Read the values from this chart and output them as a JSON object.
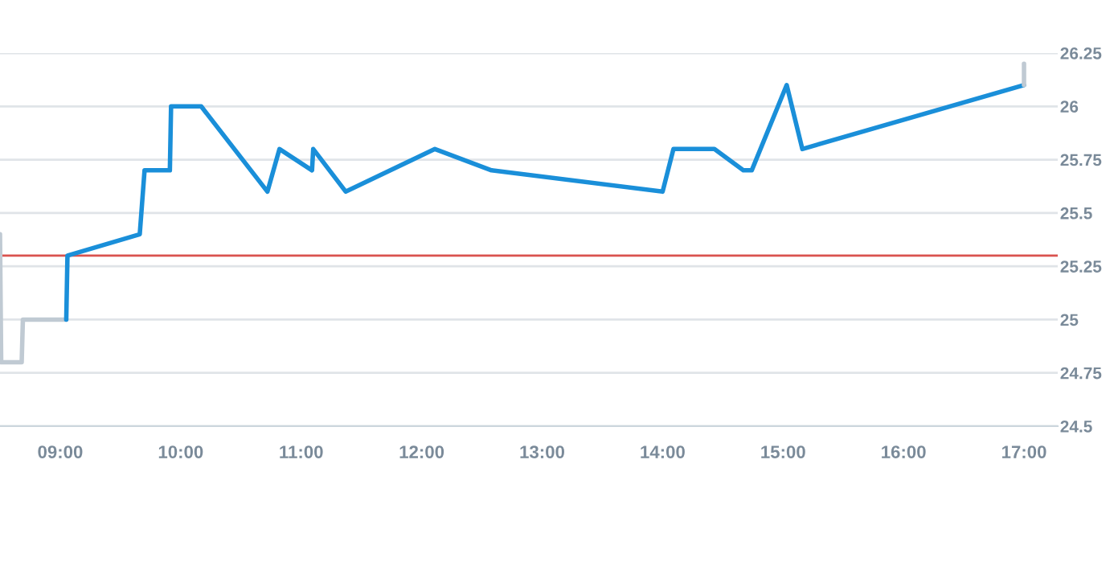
{
  "chart_data": {
    "type": "line",
    "series": [
      {
        "color": "#c0cad3",
        "x": [
          8.5,
          8.51,
          8.68,
          8.69,
          9.05
        ],
        "values": [
          25.4,
          24.8,
          24.8,
          25.0,
          25.0
        ]
      },
      {
        "color": "#1a8fd9",
        "x": [
          9.05,
          9.06,
          9.66,
          9.7,
          9.91,
          9.92,
          10.17,
          10.72,
          10.82,
          11.09,
          11.1,
          11.37,
          12.11,
          12.58,
          14.0,
          14.09,
          14.43,
          14.67,
          14.74,
          15.03,
          15.16,
          17.0
        ],
        "values": [
          25.0,
          25.3,
          25.4,
          25.7,
          25.7,
          26.0,
          26.0,
          25.6,
          25.8,
          25.7,
          25.8,
          25.6,
          25.8,
          25.7,
          25.6,
          25.8,
          25.8,
          25.7,
          25.7,
          26.1,
          25.8,
          26.1
        ]
      },
      {
        "color": "#c0cad3",
        "x": [
          17.0,
          17.0
        ],
        "values": [
          26.1,
          26.2
        ]
      }
    ],
    "xlim": [
      8.5,
      17.28
    ],
    "xticks": [
      {
        "value": 9,
        "label": "09:00"
      },
      {
        "value": 10,
        "label": "10:00"
      },
      {
        "value": 11,
        "label": "11:00"
      },
      {
        "value": 12,
        "label": "12:00"
      },
      {
        "value": 13,
        "label": "13:00"
      },
      {
        "value": 14,
        "label": "14:00"
      },
      {
        "value": 15,
        "label": "15:00"
      },
      {
        "value": 16,
        "label": "16:00"
      },
      {
        "value": 17,
        "label": "17:00"
      }
    ],
    "ylim": [
      24.5,
      26.25
    ],
    "yticks": [
      24.5,
      24.75,
      25,
      25.25,
      25.5,
      25.75,
      26,
      26.25
    ],
    "ref_lines": [
      {
        "axis": "y",
        "value": 25.3,
        "color": "#d9534f"
      }
    ],
    "grid": "y",
    "marker": "none",
    "line_style": "solid",
    "legend": false
  }
}
